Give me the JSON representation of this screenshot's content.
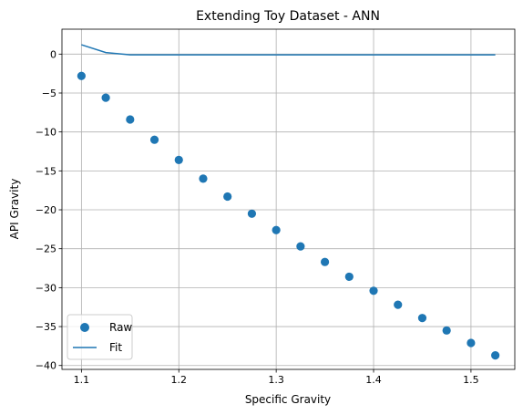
{
  "chart_data": {
    "type": "scatter",
    "title": "Extending Toy Dataset - ANN",
    "xlabel": "Specific Gravity",
    "ylabel": "API Gravity",
    "xlim": [
      1.08,
      1.545
    ],
    "ylim": [
      -40.5,
      3.2
    ],
    "xticks": [
      1.1,
      1.2,
      1.3,
      1.4,
      1.5
    ],
    "yticks": [
      0,
      -5,
      -10,
      -15,
      -20,
      -25,
      -30,
      -35,
      -40
    ],
    "xtick_labels": [
      "1.1",
      "1.2",
      "1.3",
      "1.4",
      "1.5"
    ],
    "ytick_labels": [
      "0",
      "−5",
      "−10",
      "−15",
      "−20",
      "−25",
      "−30",
      "−35",
      "−40"
    ],
    "grid": true,
    "legend_position": "lower-left",
    "series": [
      {
        "name": "Raw",
        "kind": "scatter",
        "color": "#1f77b4",
        "x": [
          1.1,
          1.125,
          1.15,
          1.175,
          1.2,
          1.225,
          1.25,
          1.275,
          1.3,
          1.325,
          1.35,
          1.375,
          1.4,
          1.425,
          1.45,
          1.475,
          1.5,
          1.525
        ],
        "y": [
          -2.8,
          -5.6,
          -8.4,
          -11.0,
          -13.6,
          -16.0,
          -18.3,
          -20.5,
          -22.6,
          -24.7,
          -26.7,
          -28.6,
          -30.4,
          -32.2,
          -33.9,
          -35.5,
          -37.1,
          -38.7
        ]
      },
      {
        "name": "Fit",
        "kind": "line",
        "color": "#1f77b4",
        "x": [
          1.1,
          1.125,
          1.15,
          1.175,
          1.2,
          1.225,
          1.25,
          1.275,
          1.3,
          1.325,
          1.35,
          1.375,
          1.4,
          1.425,
          1.45,
          1.475,
          1.5,
          1.525
        ],
        "y": [
          1.2,
          0.2,
          -0.1,
          -0.1,
          -0.1,
          -0.1,
          -0.1,
          -0.1,
          -0.1,
          -0.1,
          -0.1,
          -0.1,
          -0.1,
          -0.1,
          -0.1,
          -0.1,
          -0.1,
          -0.1
        ]
      }
    ]
  }
}
